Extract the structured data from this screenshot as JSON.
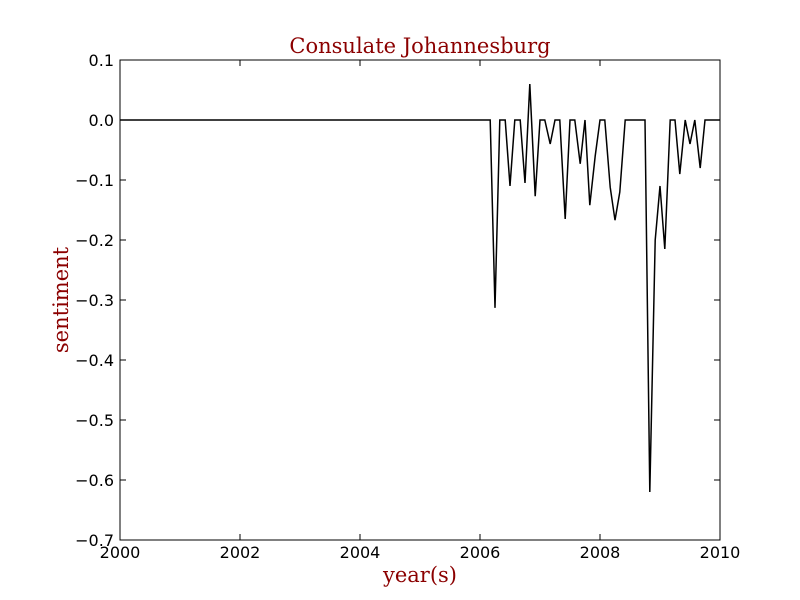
{
  "chart_data": {
    "type": "line",
    "title": "Consulate Johannesburg",
    "xlabel": "year(s)",
    "ylabel": "sentiment",
    "xlim": [
      2000,
      2010
    ],
    "ylim": [
      -0.7,
      0.1
    ],
    "xticks": [
      2000,
      2002,
      2004,
      2006,
      2008,
      2010
    ],
    "xtick_labels": [
      "2000",
      "2002",
      "2004",
      "2006",
      "2008",
      "2010"
    ],
    "yticks": [
      0.1,
      0.0,
      -0.1,
      -0.2,
      -0.3,
      -0.4,
      -0.5,
      -0.6,
      -0.7
    ],
    "ytick_labels": [
      "0.1",
      "0.0",
      "−0.1",
      "−0.2",
      "−0.3",
      "−0.4",
      "−0.5",
      "−0.6",
      "−0.7"
    ],
    "grid": false,
    "line_color": "#000000",
    "title_color": "#8b0000",
    "series": [
      {
        "x": [
          2000.0,
          2006.17,
          2006.25,
          2006.33,
          2006.42,
          2006.5,
          2006.58,
          2006.67,
          2006.75,
          2006.83,
          2006.92,
          2007.0,
          2007.08,
          2007.17,
          2007.25,
          2007.33,
          2007.42,
          2007.5,
          2007.58,
          2007.67,
          2007.75,
          2007.83,
          2007.92,
          2008.0,
          2008.08,
          2008.17,
          2008.25,
          2008.33,
          2008.42,
          2008.5,
          2008.58,
          2008.67,
          2008.75,
          2008.83,
          2008.92,
          2009.0,
          2009.08,
          2009.17,
          2009.25,
          2009.33,
          2009.42,
          2009.5,
          2009.58,
          2009.67,
          2009.75,
          2009.83,
          2009.92,
          2010.0
        ],
        "y": [
          0.0,
          0.0,
          -0.313,
          0.0,
          0.0,
          -0.11,
          0.0,
          0.0,
          -0.105,
          0.06,
          -0.127,
          0.0,
          0.0,
          -0.04,
          0.0,
          0.0,
          -0.165,
          0.0,
          0.0,
          -0.073,
          0.0,
          -0.142,
          -0.06,
          0.0,
          0.0,
          -0.112,
          -0.167,
          -0.12,
          0.0,
          0.0,
          0.0,
          0.0,
          0.0,
          -0.62,
          -0.2,
          -0.11,
          -0.215,
          0.0,
          0.0,
          -0.09,
          0.0,
          -0.04,
          0.0,
          -0.08,
          0.0,
          0.0,
          0.0,
          0.0
        ]
      }
    ]
  }
}
